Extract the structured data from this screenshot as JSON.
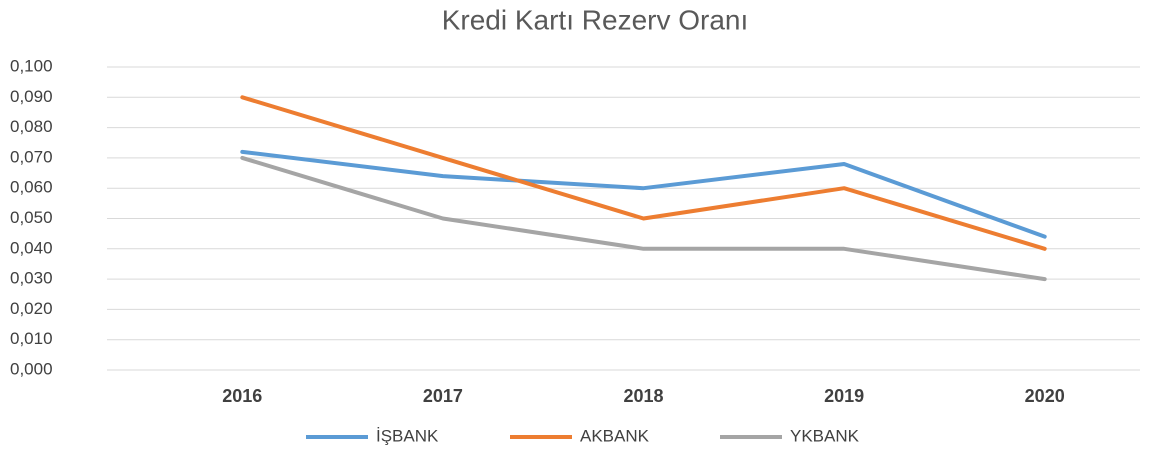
{
  "chart_data": {
    "type": "line",
    "title": "Kredi Kartı Rezerv Oranı",
    "categories": [
      "2016",
      "2017",
      "2018",
      "2019",
      "2020"
    ],
    "series": [
      {
        "name": "İŞBANK",
        "color": "#5b9bd5",
        "values": [
          0.072,
          0.064,
          0.06,
          0.068,
          0.044
        ]
      },
      {
        "name": "AKBANK",
        "color": "#ed7d31",
        "values": [
          0.09,
          0.07,
          0.05,
          0.06,
          0.04
        ]
      },
      {
        "name": "YKBANK",
        "color": "#a5a5a5",
        "values": [
          0.07,
          0.05,
          0.04,
          0.04,
          0.03
        ]
      }
    ],
    "ylim": [
      0,
      0.1
    ],
    "yticks": [
      {
        "value": 0,
        "label": "0,000"
      },
      {
        "value": 0.01,
        "label": "0,010"
      },
      {
        "value": 0.02,
        "label": "0,020"
      },
      {
        "value": 0.03,
        "label": "0,030"
      },
      {
        "value": 0.04,
        "label": "0,040"
      },
      {
        "value": 0.05,
        "label": "0,050"
      },
      {
        "value": 0.06,
        "label": "0,060"
      },
      {
        "value": 0.07,
        "label": "0,070"
      },
      {
        "value": 0.08,
        "label": "0,080"
      },
      {
        "value": 0.09,
        "label": "0,090"
      },
      {
        "value": 0.1,
        "label": "0,100"
      }
    ],
    "grid": true,
    "legend": "bottom"
  }
}
